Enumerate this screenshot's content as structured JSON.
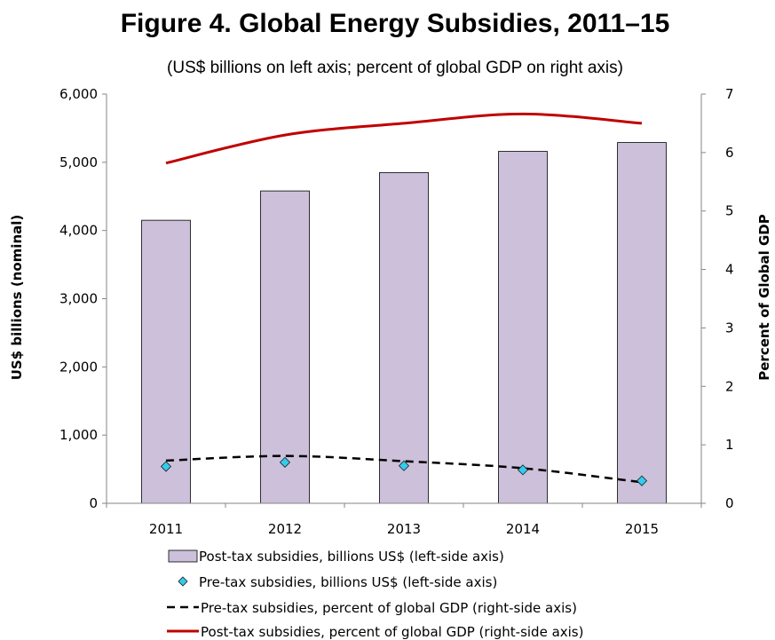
{
  "chart_data": {
    "type": "bar",
    "title": "Figure 4. Global Energy Subsidies, 2011–15",
    "subtitle": "(US$ billions on left axis; percent of global GDP on right axis)",
    "categories": [
      "2011",
      "2012",
      "2013",
      "2014",
      "2015"
    ],
    "y_left": {
      "label": "US$ billions (nominal)",
      "range": [
        0,
        6000
      ],
      "ticks": [
        "0",
        "1,000",
        "2,000",
        "3,000",
        "4,000",
        "5,000",
        "6,000"
      ]
    },
    "y_right": {
      "label": "Percent of Global GDP",
      "range": [
        0,
        7
      ],
      "ticks": [
        "0",
        "1",
        "2",
        "3",
        "4",
        "5",
        "6",
        "7"
      ]
    },
    "series": [
      {
        "name": "Post-tax subsidies, billions US$ (left-side axis)",
        "type": "bar",
        "axis": "left",
        "color": "#ccc0da",
        "values": [
          4150,
          4580,
          4850,
          5160,
          5290
        ]
      },
      {
        "name": "Pre-tax subsidies, billions US$ (left-side axis)",
        "type": "scatter",
        "axis": "left",
        "color": "#33ccee",
        "values": [
          540,
          600,
          550,
          490,
          330
        ]
      },
      {
        "name": "Pre-tax subsidies, percent of global GDP (right-side axis)",
        "type": "line",
        "style": "dashed",
        "axis": "right",
        "color": "#000000",
        "values": [
          0.73,
          0.81,
          0.72,
          0.6,
          0.36
        ]
      },
      {
        "name": "Post-tax subsidies, percent of global GDP (right-side axis)",
        "type": "line",
        "style": "solid",
        "axis": "right",
        "color": "#c00000",
        "values": [
          5.82,
          6.3,
          6.5,
          6.66,
          6.5
        ]
      }
    ],
    "grid": false,
    "legend_position": "bottom"
  }
}
